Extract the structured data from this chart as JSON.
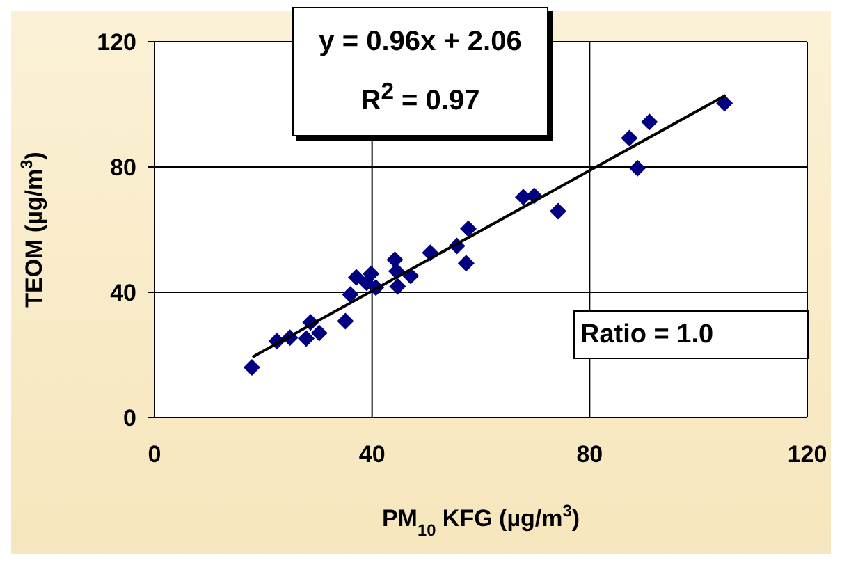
{
  "chart_data": {
    "type": "scatter",
    "xlabel": "PM$_{10}$ KFG (µg/m$^{3}$)",
    "ylabel": "TEOM (µg/m$^{3}$)",
    "annotations": [
      "y = 0.96x + 2.06",
      "R$^{2}$ = 0.97",
      "Ratio = 1.0"
    ],
    "series": [
      {
        "color": "#000080",
        "marker": "diamond",
        "x": [
          17.9,
          22.5,
          24.9,
          27.9,
          28.7,
          30.3,
          35.1,
          36,
          37.1,
          39.8,
          40.7,
          39,
          44.2,
          44.5,
          44.7,
          47.1,
          50.7,
          55.6,
          57.3,
          57.7,
          67.8,
          69.8,
          74.2,
          87.3,
          88.8,
          91,
          104.8
        ],
        "values": [
          16,
          24.4,
          25.5,
          25.2,
          30.4,
          27,
          30.8,
          39.3,
          44.8,
          45.9,
          41.5,
          43,
          50.4,
          46.7,
          41.9,
          45.2,
          52.6,
          54.8,
          49.3,
          60.3,
          70.4,
          70.8,
          65.9,
          89.2,
          79.6,
          94.4,
          100.4
        ]
      },
      {
        "type": "line",
        "color": "#000000",
        "x": [
          18,
          105
        ],
        "values": [
          19.3,
          102.9
        ]
      }
    ],
    "xlim": [
      0,
      120
    ],
    "ylim": [
      0,
      120
    ],
    "xticks": [
      0,
      40,
      80,
      120
    ],
    "yticks": [
      0,
      40,
      80,
      120
    ],
    "grid": true
  }
}
